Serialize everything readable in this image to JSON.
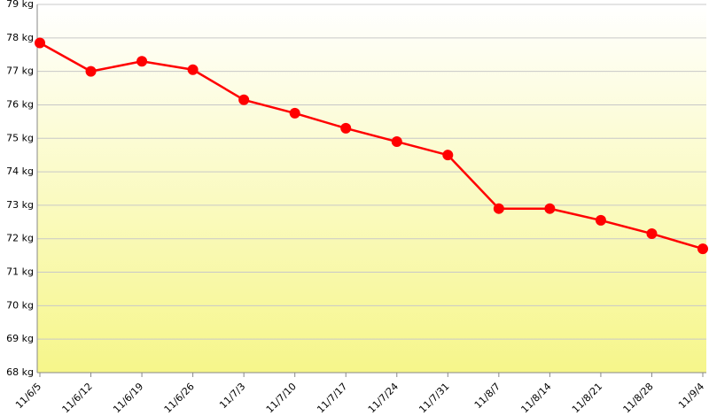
{
  "chart_data": {
    "type": "line",
    "categories": [
      "11/6/5",
      "11/6/12",
      "11/6/19",
      "11/6/26",
      "11/7/3",
      "11/7/10",
      "11/7/17",
      "11/7/24",
      "11/7/31",
      "11/8/7",
      "11/8/14",
      "11/8/21",
      "11/8/28",
      "11/9/4"
    ],
    "series": [
      {
        "color": "#ff0000",
        "values": [
          77.85,
          77.0,
          77.3,
          77.05,
          76.15,
          75.75,
          75.3,
          74.9,
          74.5,
          72.9,
          72.9,
          72.55,
          72.15,
          71.7
        ]
      }
    ],
    "ylim": [
      68,
      79
    ],
    "yticks": [
      {
        "value": 68,
        "label": "68 kg"
      },
      {
        "value": 69,
        "label": "69 kg"
      },
      {
        "value": 70,
        "label": "70 kg"
      },
      {
        "value": 71,
        "label": "71 kg"
      },
      {
        "value": 72,
        "label": "72 kg"
      },
      {
        "value": 73,
        "label": "73 kg"
      },
      {
        "value": 74,
        "label": "74 kg"
      },
      {
        "value": 75,
        "label": "75 kg"
      },
      {
        "value": 76,
        "label": "76 kg"
      },
      {
        "value": 77,
        "label": "77 kg"
      },
      {
        "value": 78,
        "label": "78 kg"
      },
      {
        "value": 79,
        "label": "79 kg"
      }
    ],
    "grid": true
  }
}
